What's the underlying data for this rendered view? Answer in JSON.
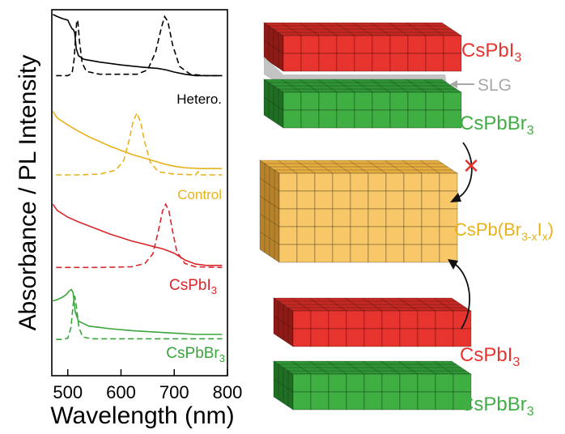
{
  "chart_data": {
    "type": "line",
    "ylabel": "Absorbance / PL Intensity",
    "xlabel": "Wavelength (nm)",
    "xlim": [
      470,
      800
    ],
    "xticks": [
      500,
      600,
      700,
      800
    ],
    "colors": {
      "hetero": "#000000",
      "control": "#e8b21c",
      "cspbi3": "#d8262a",
      "cspbbr3": "#3aa53a"
    },
    "series": [
      {
        "name": "Hetero.",
        "key": "hetero",
        "label": "Hetero.",
        "absorbance": [
          [
            472,
            0.98
          ],
          [
            480,
            0.95
          ],
          [
            490,
            0.92
          ],
          [
            500,
            0.9
          ],
          [
            505,
            0.82
          ],
          [
            508,
            0.78
          ],
          [
            511,
            0.76
          ],
          [
            513,
            0.72
          ],
          [
            516,
            0.5
          ],
          [
            520,
            0.4
          ],
          [
            530,
            0.35
          ],
          [
            560,
            0.31
          ],
          [
            600,
            0.27
          ],
          [
            640,
            0.24
          ],
          [
            670,
            0.22
          ],
          [
            685,
            0.2
          ],
          [
            700,
            0.17
          ],
          [
            720,
            0.14
          ],
          [
            740,
            0.12
          ],
          [
            760,
            0.12
          ],
          [
            790,
            0.12
          ]
        ],
        "pl": [
          [
            478,
            0.12
          ],
          [
            490,
            0.12
          ],
          [
            500,
            0.12
          ],
          [
            508,
            0.15
          ],
          [
            512,
            0.35
          ],
          [
            515,
            0.7
          ],
          [
            517,
            0.9
          ],
          [
            519,
            0.88
          ],
          [
            522,
            0.6
          ],
          [
            527,
            0.3
          ],
          [
            535,
            0.18
          ],
          [
            560,
            0.14
          ],
          [
            630,
            0.14
          ],
          [
            650,
            0.2
          ],
          [
            665,
            0.45
          ],
          [
            676,
            0.8
          ],
          [
            682,
            0.95
          ],
          [
            688,
            0.88
          ],
          [
            697,
            0.55
          ],
          [
            710,
            0.25
          ],
          [
            730,
            0.14
          ],
          [
            760,
            0.12
          ],
          [
            790,
            0.12
          ]
        ]
      },
      {
        "name": "Control",
        "key": "control",
        "label": "Control",
        "absorbance": [
          [
            472,
            0.82
          ],
          [
            480,
            0.74
          ],
          [
            500,
            0.65
          ],
          [
            520,
            0.57
          ],
          [
            540,
            0.5
          ],
          [
            560,
            0.44
          ],
          [
            580,
            0.38
          ],
          [
            600,
            0.33
          ],
          [
            620,
            0.28
          ],
          [
            640,
            0.24
          ],
          [
            660,
            0.2
          ],
          [
            680,
            0.16
          ],
          [
            700,
            0.13
          ],
          [
            720,
            0.11
          ],
          [
            750,
            0.1
          ],
          [
            790,
            0.1
          ]
        ],
        "pl": [
          [
            478,
            0.02
          ],
          [
            520,
            0.02
          ],
          [
            560,
            0.03
          ],
          [
            590,
            0.08
          ],
          [
            605,
            0.2
          ],
          [
            615,
            0.45
          ],
          [
            623,
            0.7
          ],
          [
            630,
            0.8
          ],
          [
            637,
            0.68
          ],
          [
            645,
            0.42
          ],
          [
            655,
            0.18
          ],
          [
            670,
            0.06
          ],
          [
            700,
            0.03
          ],
          [
            740,
            0.02
          ],
          [
            745,
            0.06
          ],
          [
            748,
            0.02
          ],
          [
            790,
            0.02
          ]
        ]
      },
      {
        "name": "CsPbI3",
        "key": "cspbi3",
        "label_main": "CsPbI",
        "label_sub": "3",
        "absorbance": [
          [
            472,
            0.95
          ],
          [
            480,
            0.86
          ],
          [
            500,
            0.76
          ],
          [
            520,
            0.69
          ],
          [
            540,
            0.63
          ],
          [
            560,
            0.57
          ],
          [
            580,
            0.51
          ],
          [
            600,
            0.46
          ],
          [
            620,
            0.41
          ],
          [
            640,
            0.37
          ],
          [
            660,
            0.33
          ],
          [
            680,
            0.29
          ],
          [
            700,
            0.23
          ],
          [
            720,
            0.13
          ],
          [
            740,
            0.07
          ],
          [
            760,
            0.05
          ],
          [
            790,
            0.05
          ]
        ],
        "pl": [
          [
            478,
            0.02
          ],
          [
            560,
            0.02
          ],
          [
            620,
            0.03
          ],
          [
            645,
            0.08
          ],
          [
            660,
            0.22
          ],
          [
            670,
            0.55
          ],
          [
            678,
            0.85
          ],
          [
            684,
            0.95
          ],
          [
            690,
            0.85
          ],
          [
            697,
            0.55
          ],
          [
            705,
            0.25
          ],
          [
            720,
            0.08
          ],
          [
            740,
            0.03
          ],
          [
            790,
            0.02
          ]
        ]
      },
      {
        "name": "CsPbBr3",
        "key": "cspbbr3",
        "label_main": "CsPbBr",
        "label_sub": "3",
        "absorbance": [
          [
            472,
            0.62
          ],
          [
            480,
            0.64
          ],
          [
            490,
            0.68
          ],
          [
            497,
            0.72
          ],
          [
            503,
            0.78
          ],
          [
            507,
            0.8
          ],
          [
            510,
            0.75
          ],
          [
            514,
            0.45
          ],
          [
            520,
            0.3
          ],
          [
            540,
            0.22
          ],
          [
            580,
            0.18
          ],
          [
            620,
            0.15
          ],
          [
            660,
            0.13
          ],
          [
            700,
            0.11
          ],
          [
            740,
            0.09
          ],
          [
            790,
            0.09
          ]
        ],
        "pl": [
          [
            478,
            0.01
          ],
          [
            490,
            0.01
          ],
          [
            500,
            0.03
          ],
          [
            506,
            0.2
          ],
          [
            510,
            0.55
          ],
          [
            513,
            0.7
          ],
          [
            516,
            0.55
          ],
          [
            521,
            0.2
          ],
          [
            528,
            0.05
          ],
          [
            545,
            0.02
          ],
          [
            600,
            0.02
          ],
          [
            700,
            0.02
          ],
          [
            790,
            0.02
          ]
        ]
      }
    ]
  },
  "diagram": {
    "top": {
      "top_label_main": "CsPbI",
      "top_label_sub": "3",
      "separator_label": "SLG",
      "bottom_label_main": "CsPbBr",
      "bottom_label_sub": "3"
    },
    "blocked_mark": "✕",
    "mixed_label": {
      "pre": "CsPb(Br",
      "sub1": "3-x",
      "mid": "I",
      "sub2": "x",
      "post": ")"
    },
    "bottom": {
      "top_label_main": "CsPbI",
      "top_label_sub": "3",
      "bottom_label_main": "CsPbBr",
      "bottom_label_sub": "3"
    },
    "colors": {
      "red": "#e8342e",
      "red_top": "#c42822",
      "red_side": "#8e1a16",
      "green": "#3fae43",
      "green_top": "#2f9435",
      "green_side": "#1f6e24",
      "yellow": "#f8c868",
      "yellow_top": "#e6ad40",
      "yellow_side": "#b7832a",
      "slg": "#bdbdbd",
      "mixed_text": "#e8b21c"
    }
  }
}
